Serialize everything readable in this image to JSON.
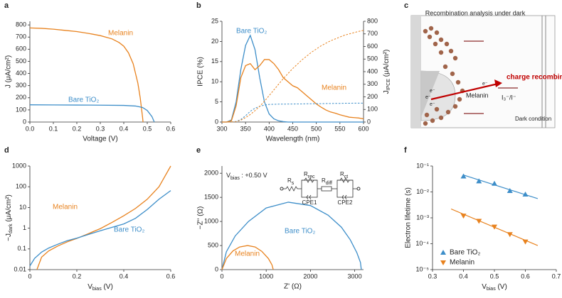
{
  "panels": [
    "a",
    "b",
    "c",
    "d",
    "e",
    "f"
  ],
  "chart_data": [
    {
      "type": "line",
      "xlabel": "Voltage (V)",
      "ylabel": "J (μA/cm²)",
      "xlim": [
        0,
        0.6
      ],
      "xticks": [
        {
          "value": 0,
          "label": "0.0"
        },
        0.1,
        0.2,
        0.3,
        0.4,
        0.5,
        0.6
      ],
      "ylim": [
        0,
        830
      ],
      "yticks": [
        0,
        100,
        200,
        300,
        400,
        500,
        600,
        700,
        800
      ],
      "series": [
        {
          "name": "Melanin",
          "color": "#e8821e",
          "x": [
            0,
            0.05,
            0.1,
            0.15,
            0.2,
            0.25,
            0.3,
            0.35,
            0.38,
            0.4,
            0.42,
            0.44,
            0.46,
            0.47,
            0.48,
            0.482
          ],
          "values": [
            775,
            772,
            765,
            755,
            745,
            730,
            712,
            685,
            655,
            625,
            570,
            480,
            320,
            200,
            40,
            0
          ]
        },
        {
          "name": "Bare TiO₂",
          "color": "#3d8ec9",
          "x": [
            0,
            0.1,
            0.2,
            0.3,
            0.4,
            0.45,
            0.48,
            0.5,
            0.52,
            0.53
          ],
          "values": [
            142,
            141,
            140,
            139,
            137,
            132,
            120,
            95,
            45,
            0
          ]
        }
      ]
    },
    {
      "type": "line",
      "xlabel": "Wavelength (nm)",
      "ylabel": "IPCE (%)",
      "y2label": [
        "J",
        "IPCE",
        " (μA/cm²)"
      ],
      "xlim": [
        300,
        600
      ],
      "xticks": [
        300,
        350,
        400,
        450,
        500,
        550,
        600
      ],
      "ylim": [
        0,
        25
      ],
      "yticks": [
        0,
        5,
        10,
        15,
        20,
        25
      ],
      "y2lim": [
        0,
        800
      ],
      "y2ticks": [
        0,
        100,
        200,
        300,
        400,
        500,
        600,
        700,
        800
      ],
      "x": [
        300,
        310,
        320,
        330,
        340,
        350,
        360,
        370,
        380,
        390,
        400,
        410,
        420,
        430,
        440,
        450,
        460,
        470,
        480,
        490,
        500,
        510,
        520,
        530,
        540,
        550,
        560,
        570,
        580,
        590,
        600
      ],
      "series": [
        {
          "name": "Bare TiO₂",
          "color": "#3d8ec9",
          "values": [
            0,
            0,
            0.5,
            5,
            13,
            19,
            21.5,
            18,
            11,
            5,
            2,
            0.8,
            0.3,
            0.1,
            0,
            0,
            0,
            0,
            0,
            0,
            0,
            0,
            0,
            0,
            0,
            0,
            0,
            0,
            0,
            0,
            0
          ]
        },
        {
          "name": "Melanin",
          "color": "#e8821e",
          "values": [
            0,
            0,
            0.3,
            4,
            11,
            14,
            14.5,
            13,
            14,
            15.5,
            15.5,
            14.5,
            13,
            11,
            10,
            9,
            8.5,
            7.5,
            6.5,
            5.5,
            4.5,
            3.7,
            3,
            2.5,
            2.2,
            1.8,
            1.5,
            1.2,
            1.1,
            1,
            0.8
          ]
        },
        {
          "color": "#3d8ec9",
          "axis": "y2",
          "dash": true,
          "values": [
            0,
            0,
            1,
            5,
            20,
            50,
            85,
            110,
            125,
            135,
            140,
            141,
            142,
            142,
            143,
            143,
            144,
            144,
            145,
            145,
            146,
            146,
            147,
            147,
            148,
            148,
            149,
            149,
            150,
            150,
            150
          ]
        },
        {
          "color": "#e8821e",
          "axis": "y2",
          "dash": true,
          "values": [
            0,
            0,
            0.5,
            3,
            15,
            35,
            60,
            90,
            125,
            165,
            210,
            255,
            300,
            345,
            385,
            425,
            460,
            495,
            525,
            555,
            580,
            605,
            625,
            645,
            660,
            675,
            690,
            700,
            710,
            720,
            728
          ]
        }
      ]
    },
    {
      "type": "line",
      "xlabel": [
        "V",
        "bias",
        " (V)"
      ],
      "ylabel": [
        "−J",
        "dark",
        " (μA/cm²)"
      ],
      "ylog": true,
      "xlim": [
        0,
        0.6
      ],
      "xticks": [
        0,
        0.2,
        0.4,
        0.6
      ],
      "ylim": [
        0.01,
        1000
      ],
      "yticks": [
        0.01,
        0.1,
        1,
        10,
        100,
        1000
      ],
      "series": [
        {
          "name": "Melanin",
          "color": "#e8821e",
          "x": [
            0.03,
            0.05,
            0.08,
            0.12,
            0.16,
            0.2,
            0.25,
            0.3,
            0.35,
            0.4,
            0.45,
            0.5,
            0.55,
            0.6
          ],
          "values": [
            0.01,
            0.04,
            0.08,
            0.14,
            0.22,
            0.32,
            0.55,
            0.95,
            1.9,
            4,
            9,
            25,
            100,
            1000
          ]
        },
        {
          "name": "Bare TiO₂",
          "color": "#3d8ec9",
          "x": [
            0,
            0.02,
            0.05,
            0.08,
            0.12,
            0.16,
            0.2,
            0.25,
            0.3,
            0.35,
            0.4,
            0.45,
            0.5,
            0.55,
            0.6
          ],
          "values": [
            0.015,
            0.035,
            0.07,
            0.11,
            0.17,
            0.25,
            0.33,
            0.5,
            0.75,
            1.1,
            1.6,
            3,
            8,
            25,
            65
          ]
        }
      ]
    },
    {
      "type": "line",
      "xlabel": "Z' (Ω)",
      "ylabel": "−Z'' (Ω)",
      "xlim": [
        0,
        3200
      ],
      "xticks": [
        0,
        1000,
        2000,
        3000
      ],
      "ylim": [
        0,
        2150
      ],
      "yticks": [
        0,
        500,
        1000,
        1500,
        2000
      ],
      "annotations": [
        [
          "V",
          "bias",
          " : +0.50 V"
        ],
        [
          "R",
          "s"
        ],
        [
          "R",
          "rec"
        ],
        [
          "R",
          "diff"
        ],
        [
          "R",
          "ct"
        ],
        "CPE1",
        "CPE2"
      ],
      "series": [
        {
          "name": "Bare TiO₂",
          "color": "#3d8ec9",
          "x": [
            0,
            100,
            300,
            600,
            1000,
            1500,
            2000,
            2400,
            2700,
            2900,
            3050,
            3130,
            3150
          ],
          "values": [
            0,
            370,
            700,
            1000,
            1280,
            1400,
            1330,
            1130,
            880,
            620,
            350,
            150,
            0
          ]
        },
        {
          "name": "Melanin",
          "color": "#e8821e",
          "x": [
            0,
            100,
            250,
            400,
            580,
            750,
            900,
            1050,
            1130,
            1160
          ],
          "values": [
            0,
            230,
            390,
            470,
            500,
            470,
            380,
            230,
            100,
            0
          ]
        }
      ]
    },
    {
      "type": "scatter",
      "xlabel": [
        "V",
        "bias",
        " (V)"
      ],
      "ylabel": "Electron lifetime (s)",
      "ylog": true,
      "legend": "lower left",
      "xlim": [
        0.3,
        0.7
      ],
      "xticks": [
        0.3,
        0.4,
        0.5,
        0.6,
        0.7
      ],
      "ylim": [
        1e-05,
        0.1
      ],
      "yticks": [
        {
          "value": 1e-05,
          "label": "10⁻⁵"
        },
        {
          "value": 0.0001,
          "label": "10⁻⁴"
        },
        {
          "value": 0.001,
          "label": "10⁻³"
        },
        {
          "value": 0.01,
          "label": "10⁻²"
        },
        {
          "value": 0.1,
          "label": "10⁻¹"
        }
      ],
      "series": [
        {
          "name": "Bare TiO₂",
          "color": "#3d8ec9",
          "marker": "triangle-up",
          "x": [
            0.4,
            0.45,
            0.5,
            0.55,
            0.6
          ],
          "values": [
            0.04,
            0.026,
            0.021,
            0.011,
            0.008
          ],
          "fit_x": [
            0.4,
            0.64
          ],
          "fit_values": [
            0.045,
            0.0055
          ]
        },
        {
          "name": "Melanin",
          "color": "#e8821e",
          "marker": "triangle-down",
          "x": [
            0.4,
            0.45,
            0.5,
            0.55,
            0.6
          ],
          "values": [
            0.0012,
            0.00075,
            0.00045,
            0.00023,
            0.00012
          ],
          "fit_x": [
            0.36,
            0.64
          ],
          "fit_values": [
            0.0022,
            8.5e-05
          ]
        }
      ]
    }
  ],
  "diagram": {
    "title": "Recombination analysis under dark",
    "arrow_label": "charge recombination",
    "electrons": [
      "e⁻",
      "e⁻",
      "e⁻",
      "e⁻"
    ],
    "material": "Melanin",
    "redox": "I₃⁻/I⁻",
    "condition": "Dark condition"
  }
}
